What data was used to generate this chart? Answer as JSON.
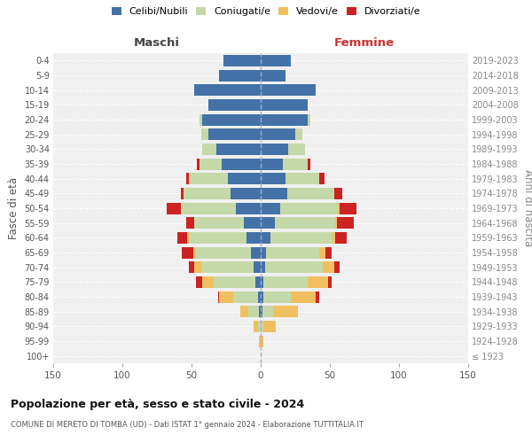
{
  "age_groups": [
    "100+",
    "95-99",
    "90-94",
    "85-89",
    "80-84",
    "75-79",
    "70-74",
    "65-69",
    "60-64",
    "55-59",
    "50-54",
    "45-49",
    "40-44",
    "35-39",
    "30-34",
    "25-29",
    "20-24",
    "15-19",
    "10-14",
    "5-9",
    "0-4"
  ],
  "birth_years": [
    "≤ 1923",
    "1924-1928",
    "1929-1933",
    "1934-1938",
    "1939-1943",
    "1944-1948",
    "1949-1953",
    "1954-1958",
    "1959-1963",
    "1964-1968",
    "1969-1973",
    "1974-1978",
    "1979-1983",
    "1984-1988",
    "1989-1993",
    "1994-1998",
    "1999-2003",
    "2004-2008",
    "2009-2013",
    "2014-2018",
    "2019-2023"
  ],
  "males": {
    "celibi": [
      0,
      0,
      0,
      1,
      2,
      4,
      5,
      7,
      10,
      12,
      18,
      22,
      24,
      28,
      32,
      38,
      42,
      38,
      48,
      30,
      27
    ],
    "coniugati": [
      0,
      0,
      2,
      8,
      18,
      30,
      38,
      40,
      42,
      36,
      40,
      34,
      28,
      16,
      10,
      5,
      2,
      0,
      0,
      0,
      0
    ],
    "vedovi": [
      0,
      1,
      3,
      6,
      10,
      8,
      5,
      2,
      1,
      0,
      0,
      0,
      0,
      0,
      0,
      0,
      0,
      0,
      0,
      0,
      0
    ],
    "divorziati": [
      0,
      0,
      0,
      0,
      1,
      5,
      4,
      8,
      7,
      6,
      10,
      2,
      2,
      2,
      0,
      0,
      0,
      0,
      0,
      0,
      0
    ]
  },
  "females": {
    "nubili": [
      0,
      0,
      0,
      1,
      2,
      2,
      3,
      4,
      7,
      10,
      14,
      19,
      18,
      16,
      20,
      25,
      34,
      34,
      40,
      18,
      22
    ],
    "coniugate": [
      0,
      0,
      2,
      8,
      20,
      32,
      42,
      38,
      45,
      44,
      42,
      34,
      24,
      18,
      12,
      5,
      2,
      0,
      0,
      0,
      0
    ],
    "vedove": [
      0,
      2,
      9,
      18,
      18,
      15,
      8,
      5,
      2,
      1,
      1,
      0,
      0,
      0,
      0,
      0,
      0,
      0,
      0,
      0,
      0
    ],
    "divorziate": [
      0,
      0,
      0,
      0,
      2,
      2,
      4,
      4,
      8,
      12,
      12,
      6,
      4,
      2,
      0,
      0,
      0,
      0,
      0,
      0,
      0
    ]
  },
  "color_celibi": "#4472a8",
  "color_coniugati": "#c5d9a8",
  "color_vedovi": "#f0c060",
  "color_divorziati": "#cc2222",
  "title": "Popolazione per età, sesso e stato civile - 2024",
  "subtitle": "COMUNE DI MERETO DI TOMBA (UD) - Dati ISTAT 1° gennaio 2024 - Elaborazione TUTTITALIA.IT",
  "ylabel": "Fasce di età",
  "right_ylabel": "Anni di nascita",
  "xlabel_left": "Maschi",
  "xlabel_right": "Femmine",
  "xlim": 150,
  "bg_color": "#ffffff",
  "plot_bg": "#f0f0f0",
  "grid_color": "#cccccc"
}
